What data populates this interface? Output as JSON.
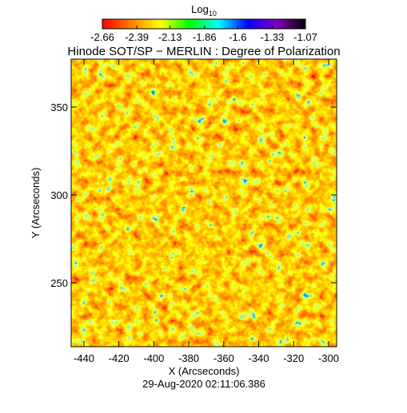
{
  "chart_data": {
    "type": "heatmap",
    "title": "Hinode SOT/SP − MERLIN : Degree of Polarization",
    "xlabel": "X (Arcseconds)",
    "ylabel": "Y (Arcseconds)",
    "footer": "29-Aug-2020 02:11:06.386",
    "colorbar_label": "Log",
    "colorbar_label_sub": "10",
    "colorbar_lim": [
      -2.66,
      -1.07
    ],
    "colorbar_ticks": [
      -2.66,
      -2.39,
      -2.13,
      -1.86,
      -1.6,
      -1.33,
      -1.07
    ],
    "colormap": [
      "#ff0000",
      "#ff8000",
      "#ffff00",
      "#00ff00",
      "#00ffff",
      "#0000ff",
      "#8000c0",
      "#000000"
    ],
    "xlim": [
      -447.3,
      -295.4
    ],
    "xticks": [
      -440,
      -420,
      -400,
      -380,
      -360,
      -340,
      -320,
      -300
    ],
    "ylim": [
      213.6,
      377.3
    ],
    "yticks": [
      250,
      300,
      350
    ]
  }
}
